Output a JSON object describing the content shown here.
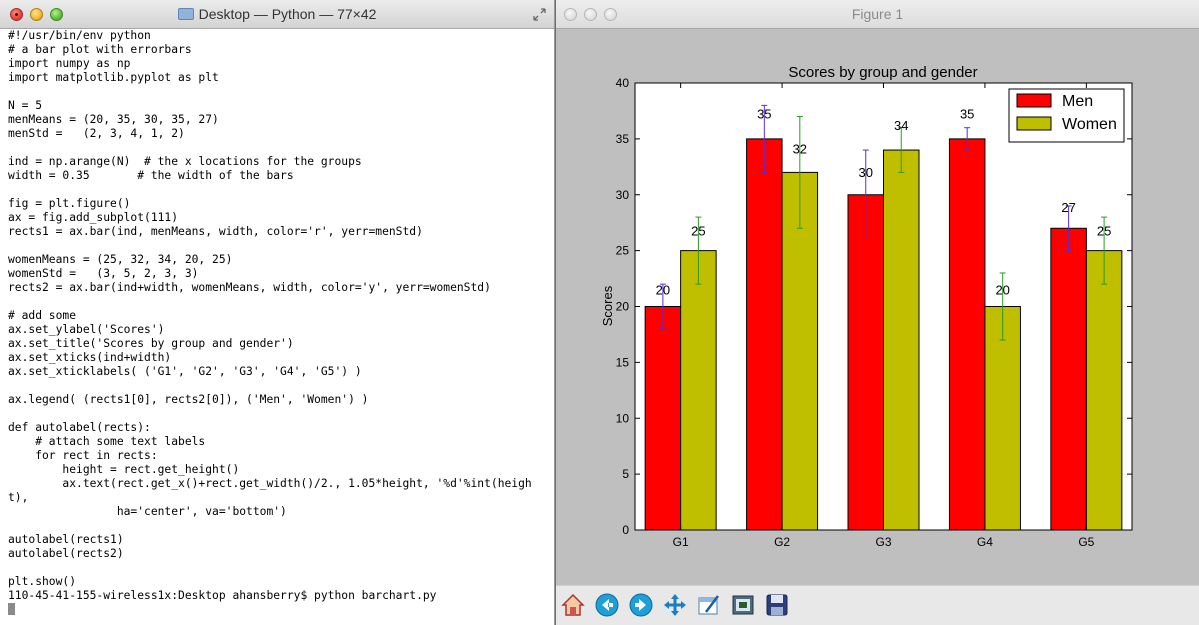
{
  "terminal": {
    "title": "Desktop — Python — 77×42",
    "lines": [
      "#!/usr/bin/env python",
      "# a bar plot with errorbars",
      "import numpy as np",
      "import matplotlib.pyplot as plt",
      "",
      "N = 5",
      "menMeans = (20, 35, 30, 35, 27)",
      "menStd =   (2, 3, 4, 1, 2)",
      "",
      "ind = np.arange(N)  # the x locations for the groups",
      "width = 0.35       # the width of the bars",
      "",
      "fig = plt.figure()",
      "ax = fig.add_subplot(111)",
      "rects1 = ax.bar(ind, menMeans, width, color='r', yerr=menStd)",
      "",
      "womenMeans = (25, 32, 34, 20, 25)",
      "womenStd =   (3, 5, 2, 3, 3)",
      "rects2 = ax.bar(ind+width, womenMeans, width, color='y', yerr=womenStd)",
      "",
      "# add some",
      "ax.set_ylabel('Scores')",
      "ax.set_title('Scores by group and gender')",
      "ax.set_xticks(ind+width)",
      "ax.set_xticklabels( ('G1', 'G2', 'G3', 'G4', 'G5') )",
      "",
      "ax.legend( (rects1[0], rects2[0]), ('Men', 'Women') )",
      "",
      "def autolabel(rects):",
      "    # attach some text labels",
      "    for rect in rects:",
      "        height = rect.get_height()",
      "        ax.text(rect.get_x()+rect.get_width()/2., 1.05*height, '%d'%int(heigh",
      "t),",
      "                ha='center', va='bottom')",
      "",
      "autolabel(rects1)",
      "autolabel(rects2)",
      "",
      "plt.show()",
      "110-45-41-155-wireless1x:Desktop ahansberry$ python barchart.py"
    ]
  },
  "figure": {
    "title": "Figure 1",
    "toolbar": [
      "home-icon",
      "back-icon",
      "forward-icon",
      "pan-icon",
      "subplots-icon",
      "zoom-icon",
      "save-icon"
    ]
  },
  "chart_data": {
    "type": "bar",
    "title": "Scores by group and gender",
    "xlabel": "",
    "ylabel": "Scores",
    "categories": [
      "G1",
      "G2",
      "G3",
      "G4",
      "G5"
    ],
    "ylim": [
      0,
      40
    ],
    "yticks": [
      0,
      5,
      10,
      15,
      20,
      25,
      30,
      35,
      40
    ],
    "legend_position": "top-right",
    "series": [
      {
        "name": "Men",
        "color": "#ff0000",
        "errcolor": "#5b2bd8",
        "values": [
          20,
          35,
          30,
          35,
          27
        ],
        "err": [
          2,
          3,
          4,
          1,
          2
        ],
        "labels": [
          "20",
          "35",
          "30",
          "35",
          "27"
        ]
      },
      {
        "name": "Women",
        "color": "#bfbf00",
        "errcolor": "#2a9a2a",
        "values": [
          25,
          32,
          34,
          20,
          25
        ],
        "err": [
          3,
          5,
          2,
          3,
          3
        ],
        "labels": [
          "25",
          "32",
          "34",
          "20",
          "25"
        ]
      }
    ]
  }
}
